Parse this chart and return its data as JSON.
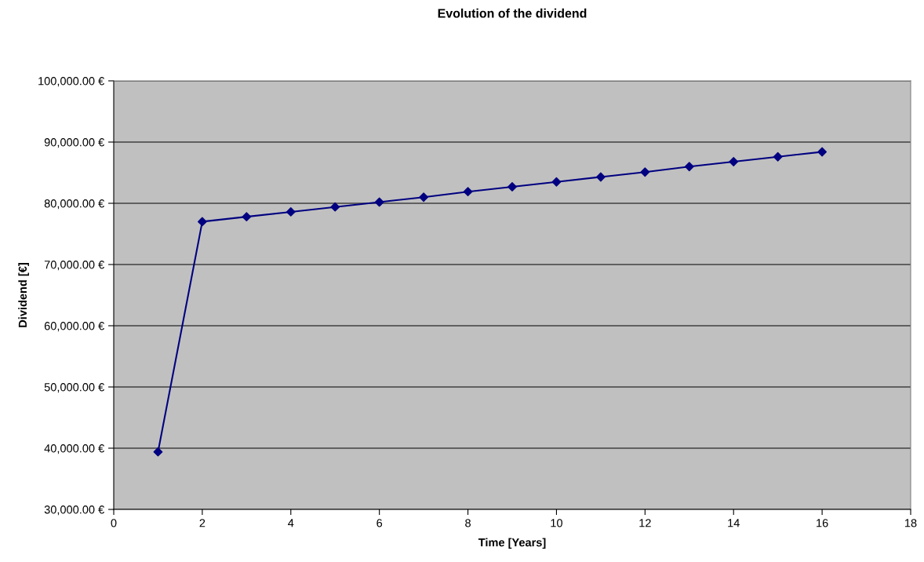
{
  "chart_data": {
    "type": "line",
    "title": "Evolution of the dividend",
    "xlabel": "Time [Years]",
    "ylabel": "Dividend [€]",
    "x": [
      1,
      2,
      3,
      4,
      5,
      6,
      7,
      8,
      9,
      10,
      11,
      12,
      13,
      14,
      15,
      16
    ],
    "series": [
      {
        "color": "#000080",
        "values": [
          39400,
          77000,
          77800,
          78600,
          79400,
          80200,
          81000,
          81900,
          82700,
          83500,
          84300,
          85100,
          86000,
          86800,
          87600,
          88400
        ]
      }
    ],
    "xlim": [
      0,
      18
    ],
    "xticks": [
      0,
      2,
      4,
      6,
      8,
      10,
      12,
      14,
      16,
      18
    ],
    "ylim": [
      30000,
      100000
    ],
    "yticks": [
      {
        "value": 30000,
        "label": "30,000.00 €"
      },
      {
        "value": 40000,
        "label": "40,000.00 €"
      },
      {
        "value": 50000,
        "label": "50,000.00 €"
      },
      {
        "value": 60000,
        "label": "60,000.00 €"
      },
      {
        "value": 70000,
        "label": "70,000.00 €"
      },
      {
        "value": 80000,
        "label": "80,000.00 €"
      },
      {
        "value": 90000,
        "label": "90,000.00 €"
      },
      {
        "value": 100000,
        "label": "100,000.00 €"
      }
    ],
    "grid": "y",
    "marker": "diamond",
    "line_style": "solid",
    "legend": false
  }
}
